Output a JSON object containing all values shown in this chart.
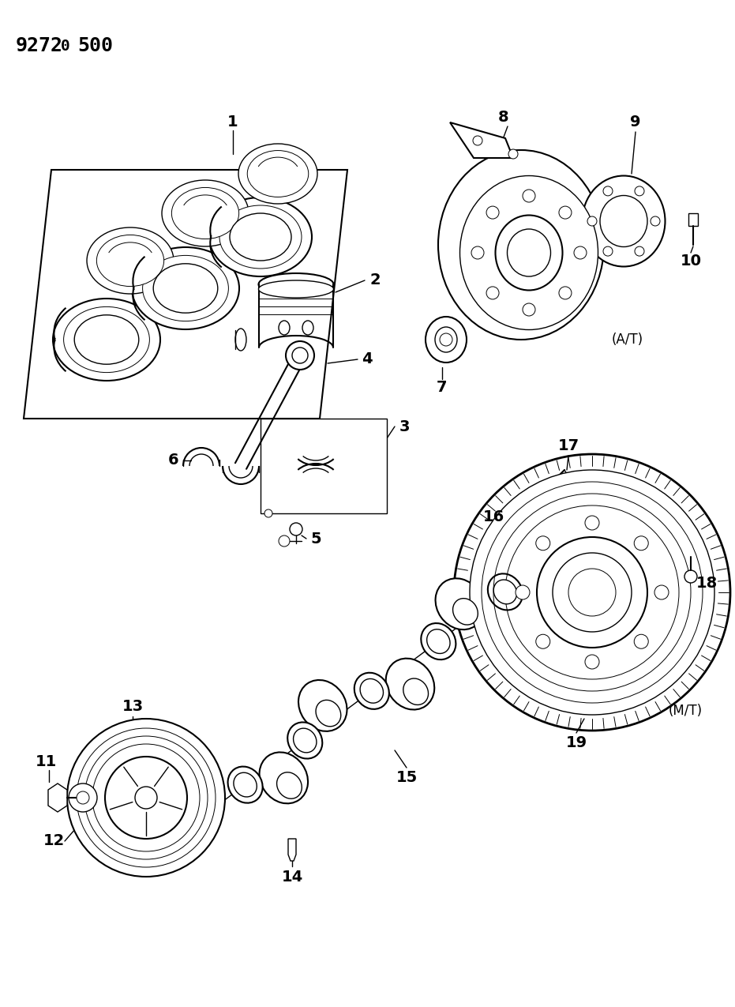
{
  "title_code": "9272 0 500",
  "bg": "#ffffff",
  "lc": "#000000",
  "fig_w": 9.31,
  "fig_h": 12.75,
  "dpi": 100
}
